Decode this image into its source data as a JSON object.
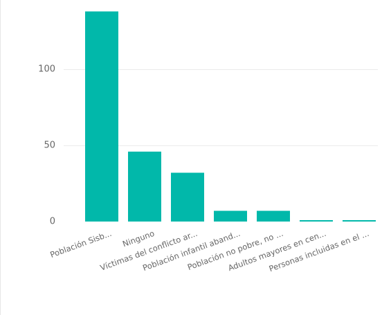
{
  "chart_data": {
    "type": "bar",
    "title": "",
    "xlabel": "",
    "ylabel": "",
    "categories": [
      "Población Sisb...",
      "Ninguno",
      "Víctimas del conflicto ar...",
      "Población infantil aband...",
      "Población no pobre, no ...",
      "Adultos mayores en cen...",
      "Personas incluidas en el ..."
    ],
    "values": [
      138,
      46,
      32,
      7,
      7,
      1,
      1
    ],
    "y_ticks": [
      0,
      50,
      100
    ],
    "ylim": [
      0,
      140
    ],
    "grid": true,
    "legend": "none",
    "bar_color": "#01b8aa"
  }
}
